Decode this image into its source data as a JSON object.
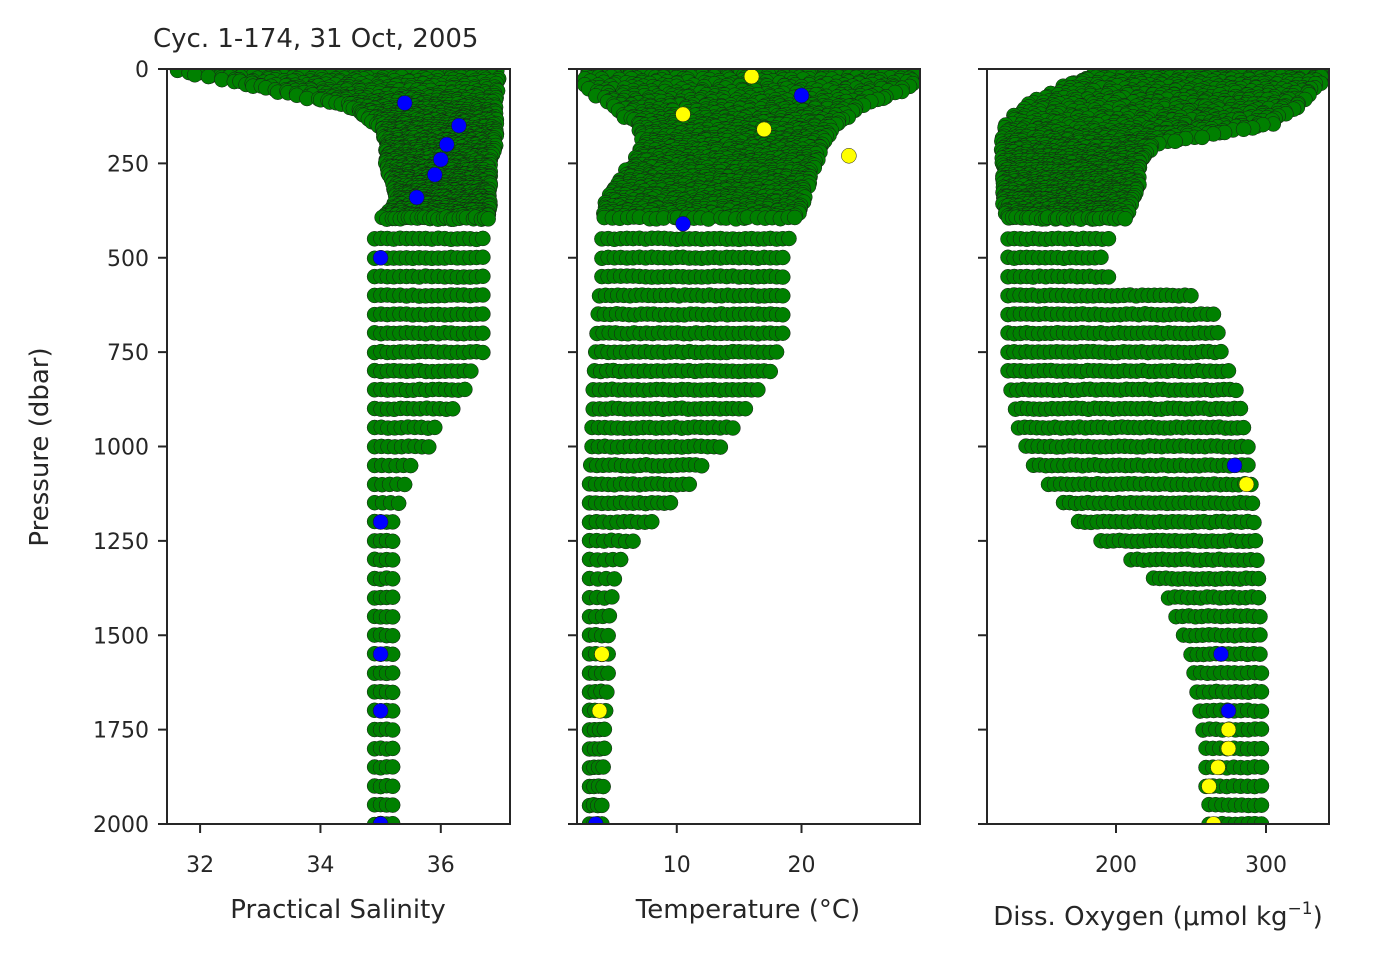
{
  "chart_data": [
    {
      "type": "scatter",
      "title": "Cyc. 1-174, 31 Oct, 2005",
      "xlabel": "Practical Salinity",
      "ylabel": "Pressure (dbar)",
      "xlim": [
        31.45,
        37.15
      ],
      "ylim": [
        2000,
        0
      ],
      "xticks": [
        32,
        34,
        36
      ],
      "yticks": [
        0,
        250,
        500,
        750,
        1000,
        1250,
        1500,
        1750,
        2000
      ],
      "grid": false,
      "profile": {
        "pressure": [
          5,
          50,
          100,
          150,
          200,
          250,
          300,
          350,
          400,
          450,
          500,
          550,
          600,
          650,
          700,
          750,
          800,
          850,
          900,
          950,
          1000,
          1050,
          1100,
          1150,
          1200,
          1250,
          1300,
          1350,
          1400,
          1450,
          1500,
          1550,
          1600,
          1650,
          1700,
          1750,
          1800,
          1850,
          1900,
          1950,
          2000
        ],
        "min": [
          31.6,
          33.0,
          34.5,
          35.0,
          35.1,
          35.1,
          35.2,
          35.3,
          35.0,
          34.9,
          34.9,
          34.9,
          34.9,
          34.9,
          34.9,
          34.9,
          34.9,
          34.9,
          34.9,
          34.9,
          34.9,
          34.9,
          34.9,
          34.9,
          34.9,
          34.9,
          34.9,
          34.9,
          34.9,
          34.9,
          34.9,
          34.9,
          34.9,
          34.9,
          34.9,
          34.9,
          34.9,
          34.9,
          34.9,
          34.9,
          34.9
        ],
        "max": [
          36.9,
          36.9,
          36.9,
          36.9,
          36.9,
          36.8,
          36.8,
          36.8,
          36.8,
          36.7,
          36.7,
          36.7,
          36.7,
          36.7,
          36.7,
          36.7,
          36.5,
          36.4,
          36.2,
          35.9,
          35.8,
          35.5,
          35.4,
          35.3,
          35.2,
          35.2,
          35.2,
          35.2,
          35.2,
          35.2,
          35.2,
          35.2,
          35.2,
          35.2,
          35.2,
          35.2,
          35.2,
          35.2,
          35.2,
          35.2,
          35.2
        ]
      },
      "flagged_points": [
        {
          "x": 35.4,
          "y": 90,
          "flag": "blue"
        },
        {
          "x": 36.3,
          "y": 150,
          "flag": "blue"
        },
        {
          "x": 36.1,
          "y": 200,
          "flag": "blue"
        },
        {
          "x": 36.0,
          "y": 240,
          "flag": "blue"
        },
        {
          "x": 35.9,
          "y": 280,
          "flag": "blue"
        },
        {
          "x": 35.6,
          "y": 340,
          "flag": "blue"
        },
        {
          "x": 35.0,
          "y": 500,
          "flag": "blue"
        },
        {
          "x": 35.0,
          "y": 1200,
          "flag": "blue"
        },
        {
          "x": 35.0,
          "y": 1550,
          "flag": "blue"
        },
        {
          "x": 35.0,
          "y": 1700,
          "flag": "blue"
        },
        {
          "x": 35.0,
          "y": 2000,
          "flag": "blue"
        }
      ]
    },
    {
      "type": "scatter",
      "xlabel": "Temperature (°C)",
      "xlim": [
        2.0,
        29.5
      ],
      "ylim": [
        2000,
        0
      ],
      "xticks": [
        10,
        20
      ],
      "yticks": [
        0,
        250,
        500,
        750,
        1000,
        1250,
        1500,
        1750,
        2000
      ],
      "grid": false,
      "profile": {
        "pressure": [
          5,
          50,
          100,
          150,
          200,
          250,
          300,
          350,
          400,
          450,
          500,
          550,
          600,
          650,
          700,
          750,
          800,
          850,
          900,
          950,
          1000,
          1050,
          1100,
          1150,
          1200,
          1250,
          1300,
          1350,
          1400,
          1450,
          1500,
          1550,
          1600,
          1650,
          1700,
          1750,
          1800,
          1850,
          1900,
          1950,
          2000
        ],
        "min": [
          3.0,
          3.0,
          5.0,
          7.0,
          7.5,
          6.5,
          5.5,
          4.5,
          4.0,
          4.0,
          4.0,
          4.0,
          3.8,
          3.7,
          3.6,
          3.5,
          3.4,
          3.3,
          3.3,
          3.2,
          3.2,
          3.1,
          3.0,
          3.0,
          3.0,
          3.0,
          3.0,
          3.0,
          3.0,
          3.0,
          3.0,
          3.0,
          3.0,
          3.0,
          3.0,
          3.0,
          3.0,
          3.0,
          3.0,
          3.0,
          3.0
        ],
        "max": [
          29.0,
          28.5,
          24.5,
          22.5,
          21.5,
          21.0,
          20.5,
          20.0,
          19.5,
          19.0,
          18.5,
          18.5,
          18.5,
          18.5,
          18.5,
          18.0,
          17.5,
          16.5,
          15.5,
          14.5,
          13.5,
          12.0,
          11.0,
          9.5,
          8.0,
          6.5,
          5.5,
          5.0,
          4.8,
          4.6,
          4.5,
          4.5,
          4.5,
          4.4,
          4.3,
          4.2,
          4.2,
          4.1,
          4.1,
          4.0,
          4.0
        ]
      },
      "flagged_points": [
        {
          "x": 16.0,
          "y": 20,
          "flag": "yellow"
        },
        {
          "x": 10.5,
          "y": 120,
          "flag": "yellow"
        },
        {
          "x": 17.0,
          "y": 160,
          "flag": "yellow"
        },
        {
          "x": 23.8,
          "y": 230,
          "flag": "yellow"
        },
        {
          "x": 20.0,
          "y": 70,
          "flag": "blue"
        },
        {
          "x": 10.5,
          "y": 410,
          "flag": "blue"
        },
        {
          "x": 4.0,
          "y": 1550,
          "flag": "yellow"
        },
        {
          "x": 3.8,
          "y": 1700,
          "flag": "yellow"
        },
        {
          "x": 3.5,
          "y": 2000,
          "flag": "blue"
        }
      ]
    },
    {
      "type": "scatter",
      "xlabel": "Diss. Oxygen (μmol kg",
      "xlabel_sup": "−1",
      "xlabel_end": ")",
      "xlim": [
        114,
        342
      ],
      "ylim": [
        2000,
        0
      ],
      "xticks": [
        200,
        300
      ],
      "yticks": [
        0,
        250,
        500,
        750,
        1000,
        1250,
        1500,
        1750,
        2000
      ],
      "grid": false,
      "profile": {
        "pressure": [
          5,
          50,
          100,
          150,
          200,
          250,
          300,
          350,
          400,
          450,
          500,
          550,
          600,
          650,
          700,
          750,
          800,
          850,
          900,
          950,
          1000,
          1050,
          1100,
          1150,
          1200,
          1250,
          1300,
          1350,
          1400,
          1450,
          1500,
          1550,
          1600,
          1650,
          1700,
          1750,
          1800,
          1850,
          1900,
          1950,
          2000
        ],
        "min": [
          190,
          165,
          140,
          128,
          125,
          125,
          125,
          125,
          128,
          128,
          128,
          128,
          128,
          128,
          128,
          128,
          128,
          130,
          133,
          135,
          140,
          145,
          155,
          165,
          175,
          190,
          210,
          225,
          235,
          240,
          245,
          250,
          252,
          254,
          256,
          258,
          260,
          260,
          260,
          262,
          262
        ],
        "max": [
          340,
          332,
          320,
          300,
          225,
          215,
          215,
          210,
          205,
          195,
          190,
          195,
          250,
          265,
          268,
          270,
          275,
          280,
          283,
          285,
          288,
          288,
          290,
          291,
          292,
          293,
          294,
          295,
          295,
          296,
          296,
          296,
          297,
          297,
          297,
          297,
          297,
          297,
          297,
          297,
          297
        ]
      },
      "flagged_points": [
        {
          "x": 279,
          "y": 1050,
          "flag": "blue"
        },
        {
          "x": 287,
          "y": 1100,
          "flag": "yellow"
        },
        {
          "x": 270,
          "y": 1550,
          "flag": "blue"
        },
        {
          "x": 275,
          "y": 1700,
          "flag": "blue"
        },
        {
          "x": 275,
          "y": 1750,
          "flag": "yellow"
        },
        {
          "x": 275,
          "y": 1800,
          "flag": "yellow"
        },
        {
          "x": 268,
          "y": 1850,
          "flag": "yellow"
        },
        {
          "x": 262,
          "y": 1900,
          "flag": "yellow"
        },
        {
          "x": 265,
          "y": 2000,
          "flag": "yellow"
        }
      ]
    }
  ],
  "colors": {
    "good": "#008000",
    "probably_good": "#0000ff",
    "probably_bad": "#ffff00",
    "edge": "#1a1a1a"
  }
}
